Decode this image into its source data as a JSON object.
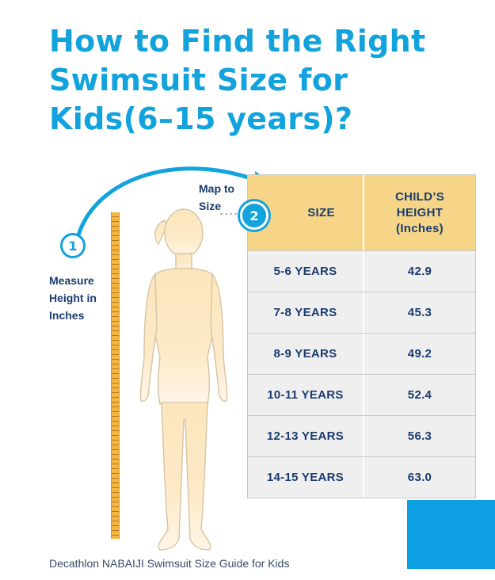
{
  "title": {
    "line1": "How to Find the Right",
    "line2": "Swimsuit Size for",
    "line3": "Kids(6–15 years)?"
  },
  "step1": {
    "number": "1",
    "label_line1": "Measure",
    "label_line2": "Height in",
    "label_line3": "Inches"
  },
  "step2": {
    "number": "2",
    "label_line1": "Map to",
    "label_line2": "Size"
  },
  "table": {
    "header_size": "SIZE",
    "header_height_line1": "CHILD’S",
    "header_height_line2": "HEIGHT",
    "header_height_line3": "(Inches)",
    "rows": [
      {
        "size": "5-6 YEARS",
        "height": "42.9"
      },
      {
        "size": "7-8 YEARS",
        "height": "45.3"
      },
      {
        "size": "8-9 YEARS",
        "height": "49.2"
      },
      {
        "size": "10-11 YEARS",
        "height": "52.4"
      },
      {
        "size": "12-13 YEARS",
        "height": "56.3"
      },
      {
        "size": "14-15 YEARS",
        "height": "63.0"
      }
    ]
  },
  "footer": "Decathlon NABAIJI Swimsuit Size Guide for Kids",
  "colors": {
    "accent_blue": "#12a3dd",
    "navy_text": "#1a3c6e",
    "header_yellow": "#f7d588",
    "ruler": "#f3b640",
    "figure_skin": "#f9d9a0"
  },
  "icons": [
    "measuring-ruler-icon",
    "child-silhouette-icon",
    "curved-arrow-icon"
  ]
}
